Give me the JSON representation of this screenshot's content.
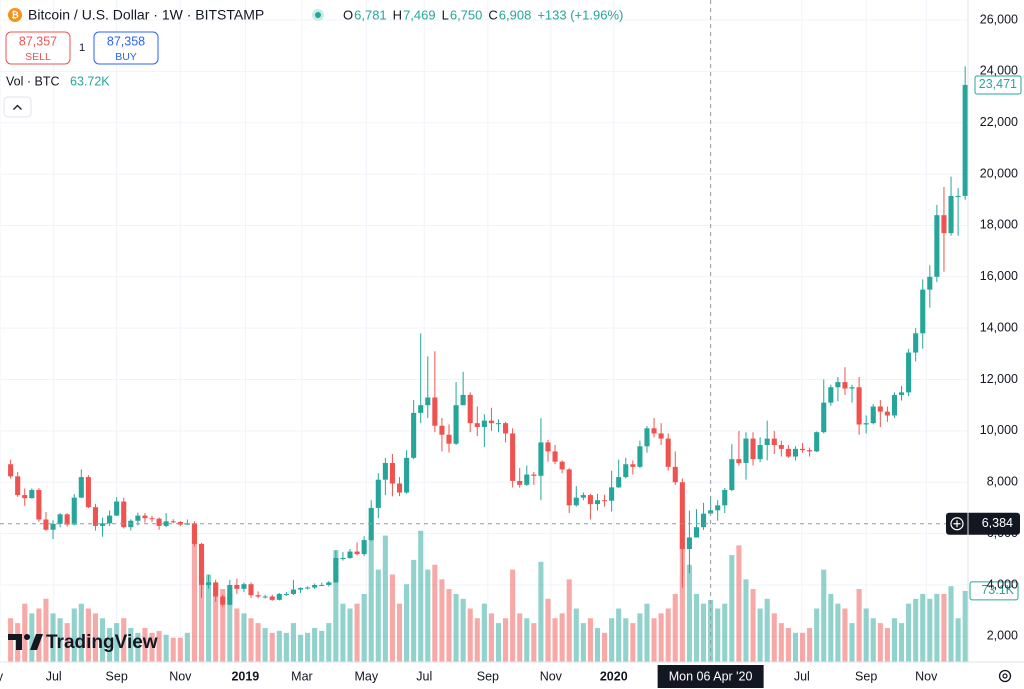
{
  "chart_data": {
    "type": "candlestick",
    "title": "Bitcoin / U.S. Dollar · 1W · BITSTAMP",
    "readout_keys": [
      "O",
      "H",
      "L",
      "C"
    ],
    "readout_values": [
      "6,781",
      "7,469",
      "6,750",
      "6,908"
    ],
    "readout_change": "+133 (+1.96%)",
    "sell_price": "87,357",
    "sell_label": "SELL",
    "spread": "1",
    "buy_price": "87,358",
    "buy_label": "BUY",
    "volume_title": "Vol · BTC",
    "volume_readout": "63.72K",
    "brand": "TradingView",
    "up_color": "#26a69a",
    "down_color": "#ef5350",
    "grid": true,
    "xlim": [
      -1.5,
      135.4
    ],
    "ylim": [
      1000,
      26000
    ],
    "volume_ylim": [
      0,
      145000
    ],
    "xticks": [
      {
        "value": -1.5,
        "label": "y"
      },
      {
        "value": 6.1,
        "label": "Jul"
      },
      {
        "value": 15.0,
        "label": "Sep"
      },
      {
        "value": 24.0,
        "label": "Nov"
      },
      {
        "value": 33.2,
        "label": "2019"
      },
      {
        "value": 41.2,
        "label": "Mar"
      },
      {
        "value": 50.3,
        "label": "May"
      },
      {
        "value": 58.5,
        "label": "Jul"
      },
      {
        "value": 67.5,
        "label": "Sep"
      },
      {
        "value": 76.4,
        "label": "Nov"
      },
      {
        "value": 85.3,
        "label": "2020"
      },
      {
        "value": 111.9,
        "label": "Jul"
      },
      {
        "value": 121.0,
        "label": "Sep"
      },
      {
        "value": 129.5,
        "label": "Nov"
      }
    ],
    "yticks": [
      {
        "value": 2000,
        "label": "2,000"
      },
      {
        "value": 4000,
        "label": "4,000"
      },
      {
        "value": 6000,
        "label": "6,000"
      },
      {
        "value": 8000,
        "label": "8,000"
      },
      {
        "value": 10000,
        "label": "10,000"
      },
      {
        "value": 12000,
        "label": "12,000"
      },
      {
        "value": 14000,
        "label": "14,000"
      },
      {
        "value": 16000,
        "label": "16,000"
      },
      {
        "value": 18000,
        "label": "18,000"
      },
      {
        "value": 20000,
        "label": "20,000"
      },
      {
        "value": 22000,
        "label": "22,000"
      },
      {
        "value": 24000,
        "label": "24,000"
      },
      {
        "value": 26000,
        "label": "26,000"
      }
    ],
    "last_price": {
      "value": 23471,
      "label": "23,471"
    },
    "last_volume_label": "73.1K",
    "crosshair": {
      "x": 99,
      "x_label": "Mon 06 Apr '20",
      "y": 6384,
      "y_label": "6,384"
    },
    "ohlc": [
      [
        8700,
        8880,
        8150,
        8230
      ],
      [
        8230,
        8400,
        7430,
        7500
      ],
      [
        7500,
        7760,
        7080,
        7380
      ],
      [
        7380,
        7760,
        7360,
        7700
      ],
      [
        7700,
        7770,
        6460,
        6550
      ],
      [
        6550,
        6840,
        6110,
        6150
      ],
      [
        6150,
        6520,
        5790,
        6380
      ],
      [
        6380,
        6800,
        6250,
        6750
      ],
      [
        6750,
        6800,
        6270,
        6350
      ],
      [
        6350,
        7540,
        6320,
        7400
      ],
      [
        7400,
        8500,
        7380,
        8200
      ],
      [
        8200,
        8280,
        6990,
        7030
      ],
      [
        7030,
        7160,
        6120,
        6300
      ],
      [
        6300,
        6620,
        5880,
        6400
      ],
      [
        6400,
        6900,
        6300,
        6700
      ],
      [
        6700,
        7420,
        6690,
        7250
      ],
      [
        7250,
        7400,
        6200,
        6250
      ],
      [
        6250,
        6560,
        6120,
        6500
      ],
      [
        6500,
        6820,
        6320,
        6700
      ],
      [
        6700,
        6800,
        6430,
        6600
      ],
      [
        6600,
        6690,
        6450,
        6580
      ],
      [
        6580,
        6630,
        6150,
        6300
      ],
      [
        6300,
        6800,
        6250,
        6480
      ],
      [
        6480,
        6560,
        6400,
        6450
      ],
      [
        6450,
        6490,
        6290,
        6350
      ],
      [
        6350,
        6550,
        6340,
        6400
      ],
      [
        6400,
        6480,
        5500,
        5600
      ],
      [
        5600,
        5640,
        3500,
        4000
      ],
      [
        4000,
        4400,
        3850,
        4100
      ],
      [
        4100,
        4200,
        3350,
        3550
      ],
      [
        3550,
        3620,
        3150,
        3230
      ],
      [
        3230,
        4200,
        3210,
        4000
      ],
      [
        4000,
        4250,
        3650,
        3850
      ],
      [
        3850,
        4100,
        3720,
        4030
      ],
      [
        4030,
        4100,
        3500,
        3600
      ],
      [
        3600,
        3750,
        3480,
        3550
      ],
      [
        3550,
        3620,
        3470,
        3550
      ],
      [
        3550,
        3620,
        3380,
        3420
      ],
      [
        3420,
        3690,
        3400,
        3650
      ],
      [
        3650,
        3730,
        3580,
        3650
      ],
      [
        3650,
        4200,
        3610,
        3820
      ],
      [
        3820,
        3910,
        3690,
        3880
      ],
      [
        3880,
        3950,
        3830,
        3900
      ],
      [
        3900,
        4060,
        3840,
        4000
      ],
      [
        4000,
        4090,
        3960,
        4000
      ],
      [
        4000,
        4150,
        3940,
        4100
      ],
      [
        4100,
        5350,
        4080,
        5050
      ],
      [
        5050,
        5280,
        4950,
        5050
      ],
      [
        5050,
        5400,
        5020,
        5300
      ],
      [
        5300,
        5650,
        5150,
        5200
      ],
      [
        5200,
        5900,
        5120,
        5750
      ],
      [
        5750,
        7300,
        5700,
        7000
      ],
      [
        7000,
        8350,
        6600,
        8100
      ],
      [
        8100,
        8950,
        7500,
        8750
      ],
      [
        8750,
        9100,
        7450,
        7950
      ],
      [
        7950,
        8200,
        7460,
        7600
      ],
      [
        7600,
        9250,
        7550,
        8950
      ],
      [
        8950,
        11200,
        8900,
        10700
      ],
      [
        10700,
        13800,
        10300,
        11000
      ],
      [
        11000,
        12900,
        10500,
        11300
      ],
      [
        11300,
        13100,
        9950,
        10200
      ],
      [
        10200,
        10500,
        9200,
        9850
      ],
      [
        9850,
        10250,
        9160,
        9500
      ],
      [
        9500,
        11900,
        9450,
        11000
      ],
      [
        11000,
        12300,
        11000,
        11400
      ],
      [
        11400,
        11500,
        9950,
        10300
      ],
      [
        10300,
        10950,
        9800,
        10150
      ],
      [
        10150,
        10650,
        9370,
        10400
      ],
      [
        10400,
        10900,
        10000,
        10300
      ],
      [
        10300,
        10450,
        9950,
        10300
      ],
      [
        10300,
        10350,
        9550,
        9900
      ],
      [
        9900,
        10100,
        7800,
        8050
      ],
      [
        8050,
        8550,
        7790,
        7900
      ],
      [
        7900,
        8650,
        7850,
        8300
      ],
      [
        8300,
        8400,
        7900,
        8250
      ],
      [
        8250,
        10500,
        7300,
        9550
      ],
      [
        9550,
        9650,
        8800,
        9200
      ],
      [
        9200,
        9450,
        8700,
        8800
      ],
      [
        8800,
        8850,
        8350,
        8500
      ],
      [
        8500,
        8550,
        6800,
        7100
      ],
      [
        7100,
        7850,
        7050,
        7400
      ],
      [
        7400,
        7600,
        7300,
        7500
      ],
      [
        7500,
        7550,
        6550,
        7150
      ],
      [
        7150,
        7550,
        6900,
        7300
      ],
      [
        7300,
        7520,
        7050,
        7280
      ],
      [
        7280,
        8450,
        6860,
        7800
      ],
      [
        7800,
        8880,
        7780,
        8200
      ],
      [
        8200,
        8950,
        8150,
        8700
      ],
      [
        8700,
        8850,
        8300,
        8600
      ],
      [
        8600,
        9620,
        8550,
        9400
      ],
      [
        9400,
        10190,
        9150,
        10100
      ],
      [
        10100,
        10500,
        9750,
        9900
      ],
      [
        9900,
        10300,
        9450,
        9700
      ],
      [
        9700,
        9900,
        8450,
        8600
      ],
      [
        8600,
        9200,
        7900,
        8000
      ],
      [
        8000,
        8150,
        3900,
        5400
      ],
      [
        5400,
        6900,
        4450,
        5850
      ],
      [
        5850,
        6950,
        5850,
        6250
      ],
      [
        6250,
        7200,
        6140,
        6775
      ],
      [
        6781,
        7469,
        6750,
        6908
      ],
      [
        6908,
        7300,
        6500,
        7100
      ],
      [
        7100,
        7780,
        6800,
        7700
      ],
      [
        7700,
        9480,
        7650,
        8900
      ],
      [
        8900,
        10000,
        8650,
        8750
      ],
      [
        8750,
        9950,
        8100,
        9700
      ],
      [
        9700,
        9950,
        8650,
        8900
      ],
      [
        8900,
        9750,
        8780,
        9450
      ],
      [
        9450,
        10400,
        8850,
        9700
      ],
      [
        9700,
        10000,
        9100,
        9450
      ],
      [
        9450,
        9620,
        9000,
        9300
      ],
      [
        9300,
        9450,
        8950,
        9000
      ],
      [
        9000,
        9400,
        8850,
        9300
      ],
      [
        9300,
        9520,
        9150,
        9250
      ],
      [
        9250,
        9350,
        9000,
        9200
      ],
      [
        9200,
        9980,
        9180,
        9950
      ],
      [
        9950,
        12000,
        9900,
        11100
      ],
      [
        11100,
        11800,
        10980,
        11700
      ],
      [
        11700,
        12100,
        11150,
        11900
      ],
      [
        11900,
        12480,
        11400,
        11650
      ],
      [
        11650,
        11800,
        11100,
        11700
      ],
      [
        11700,
        12100,
        9850,
        10250
      ],
      [
        10250,
        10600,
        9900,
        10300
      ],
      [
        10300,
        11050,
        10250,
        10950
      ],
      [
        10950,
        11200,
        10150,
        10750
      ],
      [
        10750,
        10950,
        10350,
        10600
      ],
      [
        10600,
        11500,
        10500,
        11400
      ],
      [
        11400,
        11750,
        11180,
        11500
      ],
      [
        11500,
        13200,
        11350,
        13050
      ],
      [
        13050,
        14000,
        12700,
        13800
      ],
      [
        13800,
        15900,
        13200,
        15500
      ],
      [
        15500,
        16450,
        14800,
        16000
      ],
      [
        16000,
        18800,
        15800,
        18400
      ],
      [
        18400,
        19500,
        16200,
        17700
      ],
      [
        17700,
        19900,
        17600,
        19150
      ],
      [
        19150,
        19450,
        17600,
        19150
      ],
      [
        19150,
        24200,
        19000,
        23471
      ]
    ],
    "volumes": [
      45000,
      40000,
      60000,
      50000,
      55000,
      65000,
      50000,
      45000,
      40000,
      55000,
      60000,
      55000,
      50000,
      45000,
      35000,
      40000,
      45000,
      35000,
      30000,
      35000,
      30000,
      32000,
      28000,
      25000,
      25000,
      30000,
      140000,
      105000,
      90000,
      80000,
      75000,
      70000,
      55000,
      50000,
      45000,
      40000,
      35000,
      30000,
      32000,
      30000,
      40000,
      28000,
      30000,
      35000,
      32000,
      40000,
      115000,
      60000,
      55000,
      60000,
      70000,
      130000,
      95000,
      130000,
      90000,
      60000,
      80000,
      105000,
      135000,
      95000,
      100000,
      85000,
      75000,
      70000,
      65000,
      55000,
      45000,
      60000,
      50000,
      40000,
      45000,
      95000,
      50000,
      45000,
      40000,
      103000,
      65000,
      45000,
      50000,
      85000,
      55000,
      40000,
      45000,
      35000,
      30000,
      45000,
      55000,
      45000,
      40000,
      50000,
      60000,
      45000,
      50000,
      55000,
      70000,
      145000,
      100000,
      70000,
      60000,
      63720,
      55000,
      60000,
      110000,
      120000,
      85000,
      75000,
      55000,
      65000,
      50000,
      40000,
      35000,
      30000,
      30000,
      35000,
      55000,
      95000,
      70000,
      60000,
      55000,
      40000,
      75000,
      55000,
      45000,
      40000,
      35000,
      45000,
      40000,
      60000,
      65000,
      70000,
      65000,
      70000,
      70000,
      78000,
      45000,
      73100
    ]
  }
}
